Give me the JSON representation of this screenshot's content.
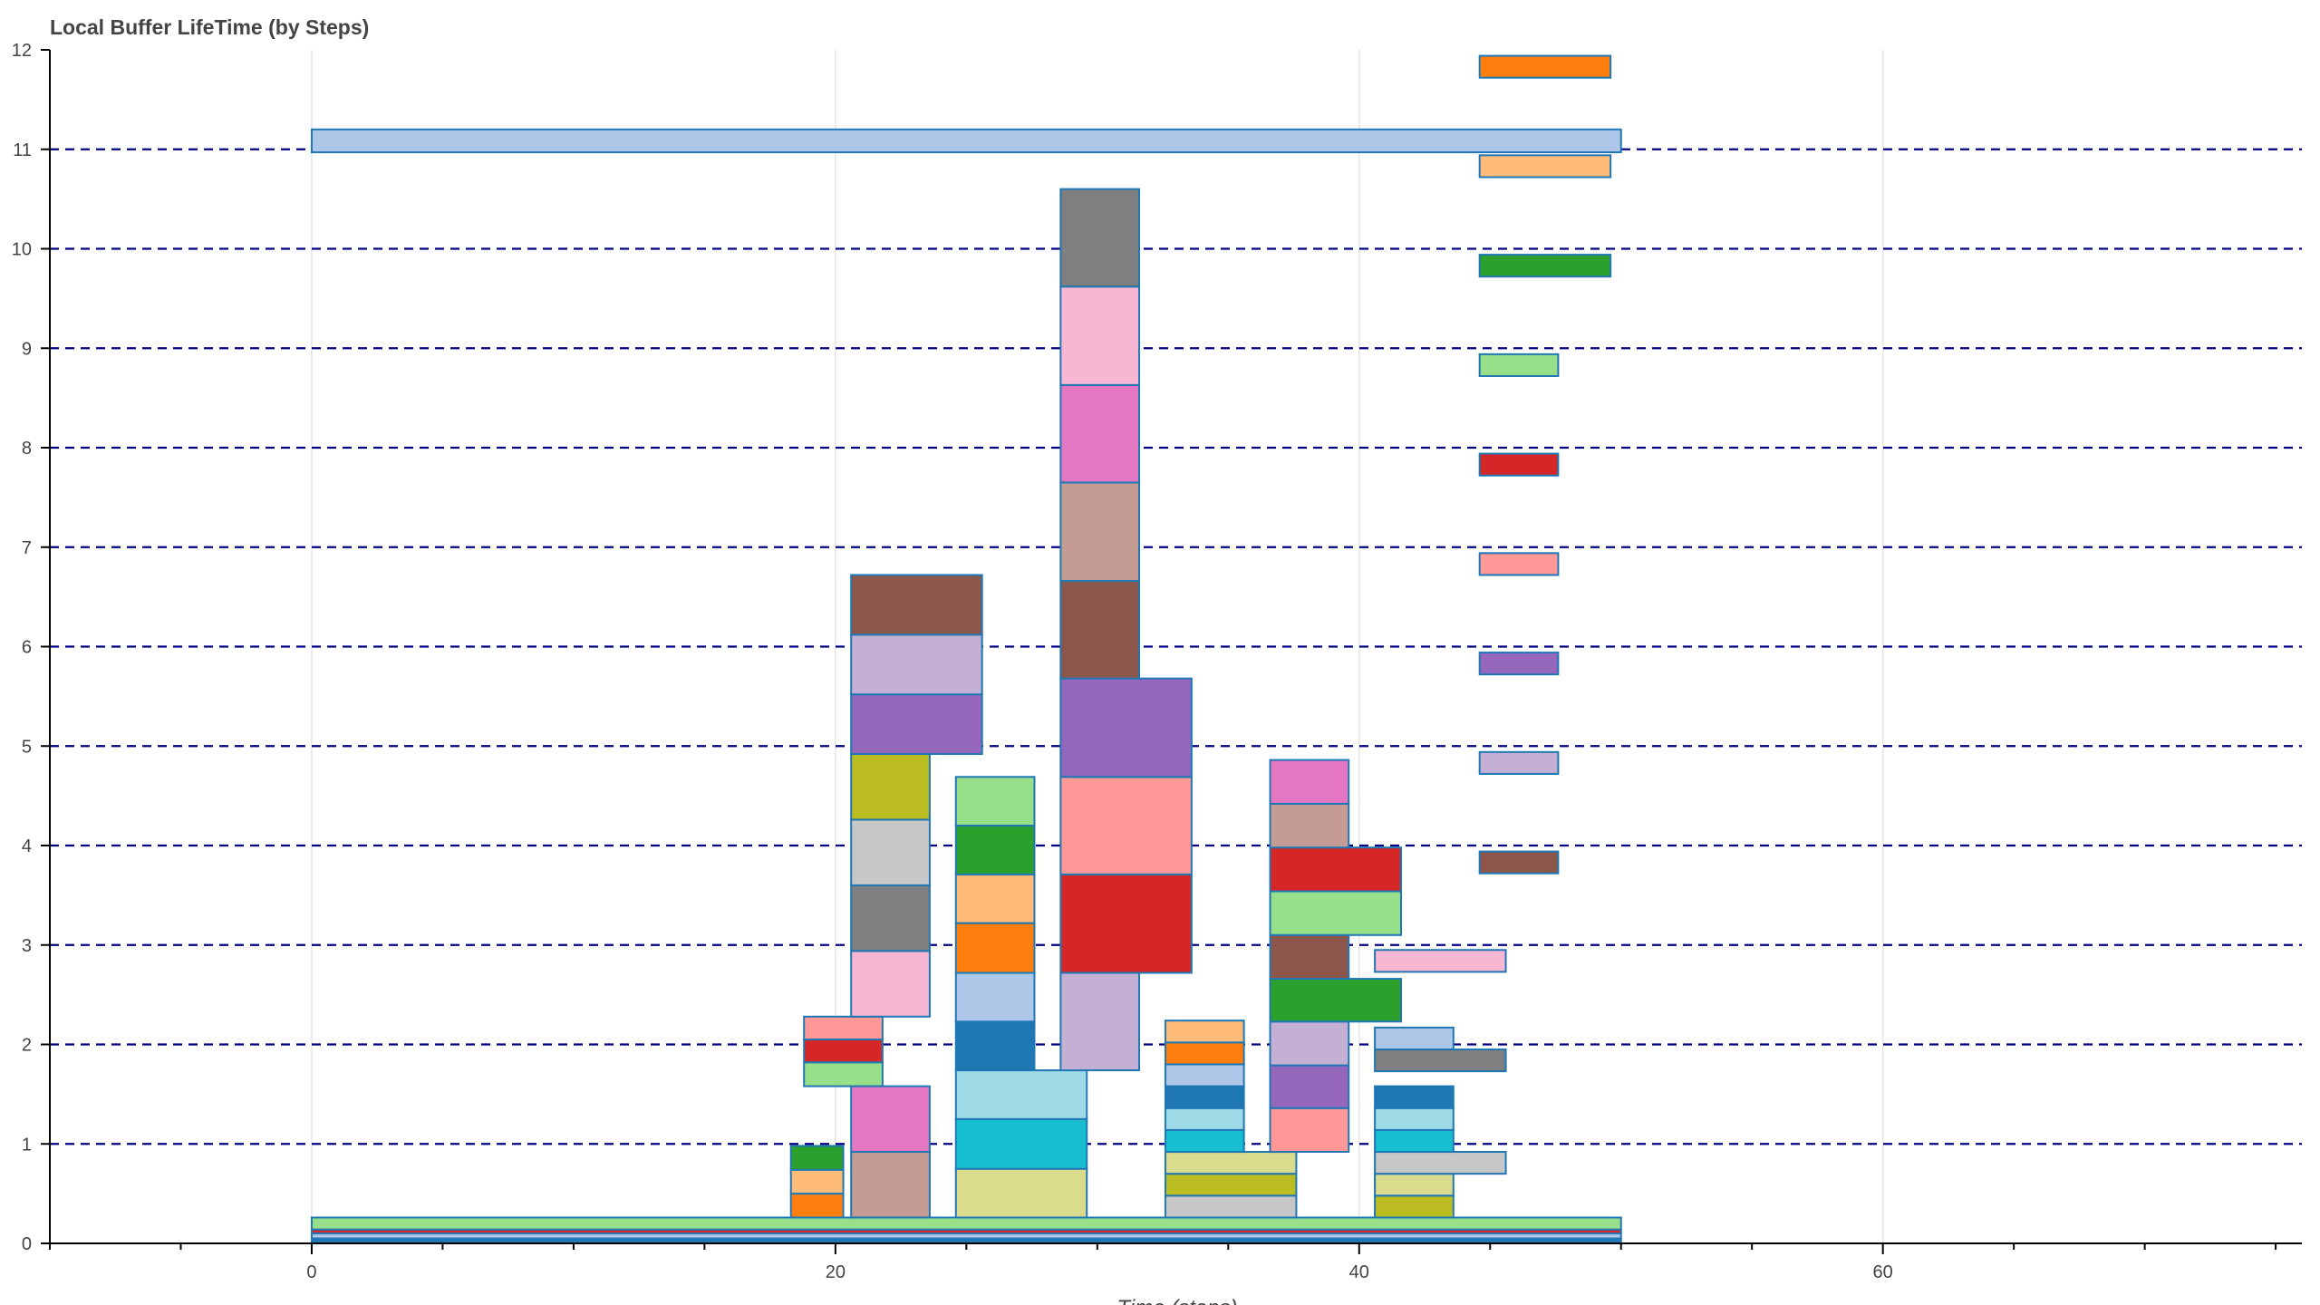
{
  "chart_data": {
    "type": "bar",
    "subtype": "horizontal-floating-bars",
    "title": "Local Buffer LifeTime (by Steps)",
    "xlabel": "Time (steps)",
    "ylabel": "",
    "xlim": [
      -10,
      76
    ],
    "ylim": [
      0,
      12
    ],
    "x_ticks": [
      0,
      20,
      40,
      60
    ],
    "y_ticks": [
      0,
      1,
      2,
      3,
      4,
      5,
      6,
      7,
      8,
      9,
      10,
      11,
      12
    ],
    "horizontal_reference_lines": [
      1,
      2,
      3,
      4,
      5,
      6,
      7,
      8,
      9,
      10,
      11
    ],
    "reference_line_style": "dashed navy",
    "grid": {
      "x": true,
      "y": false
    },
    "legend": "none",
    "outline_color": "#1f77b4",
    "bars": [
      {
        "x0": 0,
        "x1": 50,
        "y0": 0.0,
        "y1": 0.05,
        "color": "#1f77b4"
      },
      {
        "x0": 0,
        "x1": 50,
        "y0": 0.05,
        "y1": 0.1,
        "color": "#aec7e8"
      },
      {
        "x0": 0,
        "x1": 50,
        "y0": 0.1,
        "y1": 0.14,
        "color": "#d62728"
      },
      {
        "x0": 0,
        "x1": 50,
        "y0": 0.14,
        "y1": 0.26,
        "color": "#98df8a"
      },
      {
        "x0": 0,
        "x1": 50,
        "y0": 10.97,
        "y1": 11.2,
        "color": "#aec7e8"
      },
      {
        "x0": 18.3,
        "x1": 20.3,
        "y0": 0.26,
        "y1": 0.5,
        "color": "#ff7f0e"
      },
      {
        "x0": 18.3,
        "x1": 20.3,
        "y0": 0.5,
        "y1": 0.74,
        "color": "#ffbb78"
      },
      {
        "x0": 18.3,
        "x1": 20.3,
        "y0": 0.74,
        "y1": 0.98,
        "color": "#2ca02c"
      },
      {
        "x0": 18.8,
        "x1": 21.8,
        "y0": 1.58,
        "y1": 1.82,
        "color": "#98df8a"
      },
      {
        "x0": 18.8,
        "x1": 21.8,
        "y0": 1.82,
        "y1": 2.05,
        "color": "#d62728"
      },
      {
        "x0": 18.8,
        "x1": 21.8,
        "y0": 2.05,
        "y1": 2.28,
        "color": "#ff9896"
      },
      {
        "x0": 20.6,
        "x1": 23.6,
        "y0": 0.26,
        "y1": 0.92,
        "color": "#c49c94"
      },
      {
        "x0": 20.6,
        "x1": 23.6,
        "y0": 0.92,
        "y1": 1.58,
        "color": "#e377c2"
      },
      {
        "x0": 20.6,
        "x1": 23.6,
        "y0": 2.28,
        "y1": 2.94,
        "color": "#f7b6d2"
      },
      {
        "x0": 20.6,
        "x1": 23.6,
        "y0": 2.94,
        "y1": 3.6,
        "color": "#7f7f7f"
      },
      {
        "x0": 20.6,
        "x1": 23.6,
        "y0": 3.6,
        "y1": 4.26,
        "color": "#c7c7c7"
      },
      {
        "x0": 20.6,
        "x1": 23.6,
        "y0": 4.26,
        "y1": 4.92,
        "color": "#bcbd22"
      },
      {
        "x0": 20.6,
        "x1": 25.6,
        "y0": 4.92,
        "y1": 5.52,
        "color": "#9467bd"
      },
      {
        "x0": 20.6,
        "x1": 25.6,
        "y0": 5.52,
        "y1": 6.12,
        "color": "#c5b0d5"
      },
      {
        "x0": 20.6,
        "x1": 25.6,
        "y0": 6.12,
        "y1": 6.72,
        "color": "#8c564b"
      },
      {
        "x0": 24.6,
        "x1": 29.6,
        "y0": 0.26,
        "y1": 0.75,
        "color": "#dbdb8d"
      },
      {
        "x0": 24.6,
        "x1": 29.6,
        "y0": 0.75,
        "y1": 1.25,
        "color": "#17becf"
      },
      {
        "x0": 24.6,
        "x1": 29.6,
        "y0": 1.25,
        "y1": 1.74,
        "color": "#9edae5"
      },
      {
        "x0": 24.6,
        "x1": 27.6,
        "y0": 1.74,
        "y1": 2.23,
        "color": "#1f77b4"
      },
      {
        "x0": 24.6,
        "x1": 27.6,
        "y0": 2.23,
        "y1": 2.72,
        "color": "#aec7e8"
      },
      {
        "x0": 24.6,
        "x1": 27.6,
        "y0": 2.72,
        "y1": 3.22,
        "color": "#ff7f0e"
      },
      {
        "x0": 24.6,
        "x1": 27.6,
        "y0": 3.22,
        "y1": 3.71,
        "color": "#ffbb78"
      },
      {
        "x0": 24.6,
        "x1": 27.6,
        "y0": 3.71,
        "y1": 4.2,
        "color": "#2ca02c"
      },
      {
        "x0": 24.6,
        "x1": 27.6,
        "y0": 4.2,
        "y1": 4.69,
        "color": "#98df8a"
      },
      {
        "x0": 28.6,
        "x1": 31.6,
        "y0": 1.74,
        "y1": 2.72,
        "color": "#c5b0d5"
      },
      {
        "x0": 28.6,
        "x1": 33.6,
        "y0": 2.72,
        "y1": 3.71,
        "color": "#d62728"
      },
      {
        "x0": 28.6,
        "x1": 33.6,
        "y0": 3.71,
        "y1": 4.69,
        "color": "#ff9896"
      },
      {
        "x0": 28.6,
        "x1": 33.6,
        "y0": 4.69,
        "y1": 5.68,
        "color": "#9467bd"
      },
      {
        "x0": 28.6,
        "x1": 31.6,
        "y0": 5.68,
        "y1": 6.66,
        "color": "#8c564b"
      },
      {
        "x0": 28.6,
        "x1": 31.6,
        "y0": 6.66,
        "y1": 7.65,
        "color": "#c49c94"
      },
      {
        "x0": 28.6,
        "x1": 31.6,
        "y0": 7.65,
        "y1": 8.63,
        "color": "#e377c2"
      },
      {
        "x0": 28.6,
        "x1": 31.6,
        "y0": 8.63,
        "y1": 9.62,
        "color": "#f7b6d2"
      },
      {
        "x0": 28.6,
        "x1": 31.6,
        "y0": 9.62,
        "y1": 10.6,
        "color": "#7f7f7f"
      },
      {
        "x0": 32.6,
        "x1": 37.6,
        "y0": 0.26,
        "y1": 0.48,
        "color": "#c7c7c7"
      },
      {
        "x0": 32.6,
        "x1": 37.6,
        "y0": 0.48,
        "y1": 0.7,
        "color": "#bcbd22"
      },
      {
        "x0": 32.6,
        "x1": 37.6,
        "y0": 0.7,
        "y1": 0.92,
        "color": "#dbdb8d"
      },
      {
        "x0": 32.6,
        "x1": 35.6,
        "y0": 0.92,
        "y1": 1.14,
        "color": "#17becf"
      },
      {
        "x0": 32.6,
        "x1": 35.6,
        "y0": 1.14,
        "y1": 1.36,
        "color": "#9edae5"
      },
      {
        "x0": 32.6,
        "x1": 35.6,
        "y0": 1.36,
        "y1": 1.58,
        "color": "#1f77b4"
      },
      {
        "x0": 32.6,
        "x1": 35.6,
        "y0": 1.58,
        "y1": 1.8,
        "color": "#aec7e8"
      },
      {
        "x0": 32.6,
        "x1": 35.6,
        "y0": 1.8,
        "y1": 2.02,
        "color": "#ff7f0e"
      },
      {
        "x0": 32.6,
        "x1": 35.6,
        "y0": 2.02,
        "y1": 2.24,
        "color": "#ffbb78"
      },
      {
        "x0": 36.6,
        "x1": 39.6,
        "y0": 0.92,
        "y1": 1.36,
        "color": "#ff9896"
      },
      {
        "x0": 36.6,
        "x1": 39.6,
        "y0": 1.36,
        "y1": 1.79,
        "color": "#9467bd"
      },
      {
        "x0": 36.6,
        "x1": 39.6,
        "y0": 1.79,
        "y1": 2.23,
        "color": "#c5b0d5"
      },
      {
        "x0": 36.6,
        "x1": 41.6,
        "y0": 2.23,
        "y1": 2.66,
        "color": "#2ca02c"
      },
      {
        "x0": 36.6,
        "x1": 39.6,
        "y0": 2.66,
        "y1": 3.1,
        "color": "#8c564b"
      },
      {
        "x0": 36.6,
        "x1": 41.6,
        "y0": 3.1,
        "y1": 3.54,
        "color": "#98df8a"
      },
      {
        "x0": 36.6,
        "x1": 41.6,
        "y0": 3.54,
        "y1": 3.98,
        "color": "#d62728"
      },
      {
        "x0": 36.6,
        "x1": 39.6,
        "y0": 3.98,
        "y1": 4.42,
        "color": "#c49c94"
      },
      {
        "x0": 36.6,
        "x1": 39.6,
        "y0": 4.42,
        "y1": 4.86,
        "color": "#e377c2"
      },
      {
        "x0": 40.6,
        "x1": 43.6,
        "y0": 0.26,
        "y1": 0.48,
        "color": "#bcbd22"
      },
      {
        "x0": 40.6,
        "x1": 43.6,
        "y0": 0.48,
        "y1": 0.7,
        "color": "#dbdb8d"
      },
      {
        "x0": 40.6,
        "x1": 45.6,
        "y0": 0.7,
        "y1": 0.92,
        "color": "#c7c7c7"
      },
      {
        "x0": 40.6,
        "x1": 43.6,
        "y0": 0.92,
        "y1": 1.14,
        "color": "#17becf"
      },
      {
        "x0": 40.6,
        "x1": 43.6,
        "y0": 1.14,
        "y1": 1.36,
        "color": "#9edae5"
      },
      {
        "x0": 40.6,
        "x1": 43.6,
        "y0": 1.36,
        "y1": 1.58,
        "color": "#1f77b4"
      },
      {
        "x0": 40.6,
        "x1": 45.6,
        "y0": 1.73,
        "y1": 1.95,
        "color": "#7f7f7f"
      },
      {
        "x0": 40.6,
        "x1": 43.6,
        "y0": 1.95,
        "y1": 2.17,
        "color": "#aec7e8"
      },
      {
        "x0": 40.6,
        "x1": 45.6,
        "y0": 2.73,
        "y1": 2.95,
        "color": "#f7b6d2"
      },
      {
        "x0": 44.6,
        "x1": 47.6,
        "y0": 3.72,
        "y1": 3.94,
        "color": "#8c564b"
      },
      {
        "x0": 44.6,
        "x1": 47.6,
        "y0": 4.72,
        "y1": 4.94,
        "color": "#c5b0d5"
      },
      {
        "x0": 44.6,
        "x1": 47.6,
        "y0": 5.72,
        "y1": 5.94,
        "color": "#9467bd"
      },
      {
        "x0": 44.6,
        "x1": 47.6,
        "y0": 6.72,
        "y1": 6.94,
        "color": "#ff9896"
      },
      {
        "x0": 44.6,
        "x1": 47.6,
        "y0": 7.72,
        "y1": 7.94,
        "color": "#d62728"
      },
      {
        "x0": 44.6,
        "x1": 47.6,
        "y0": 8.72,
        "y1": 8.94,
        "color": "#98df8a"
      },
      {
        "x0": 44.6,
        "x1": 49.6,
        "y0": 9.72,
        "y1": 9.94,
        "color": "#2ca02c"
      },
      {
        "x0": 44.6,
        "x1": 49.6,
        "y0": 10.72,
        "y1": 10.94,
        "color": "#ffbb78"
      },
      {
        "x0": 44.6,
        "x1": 49.6,
        "y0": 11.72,
        "y1": 11.94,
        "color": "#ff7f0e"
      }
    ]
  }
}
